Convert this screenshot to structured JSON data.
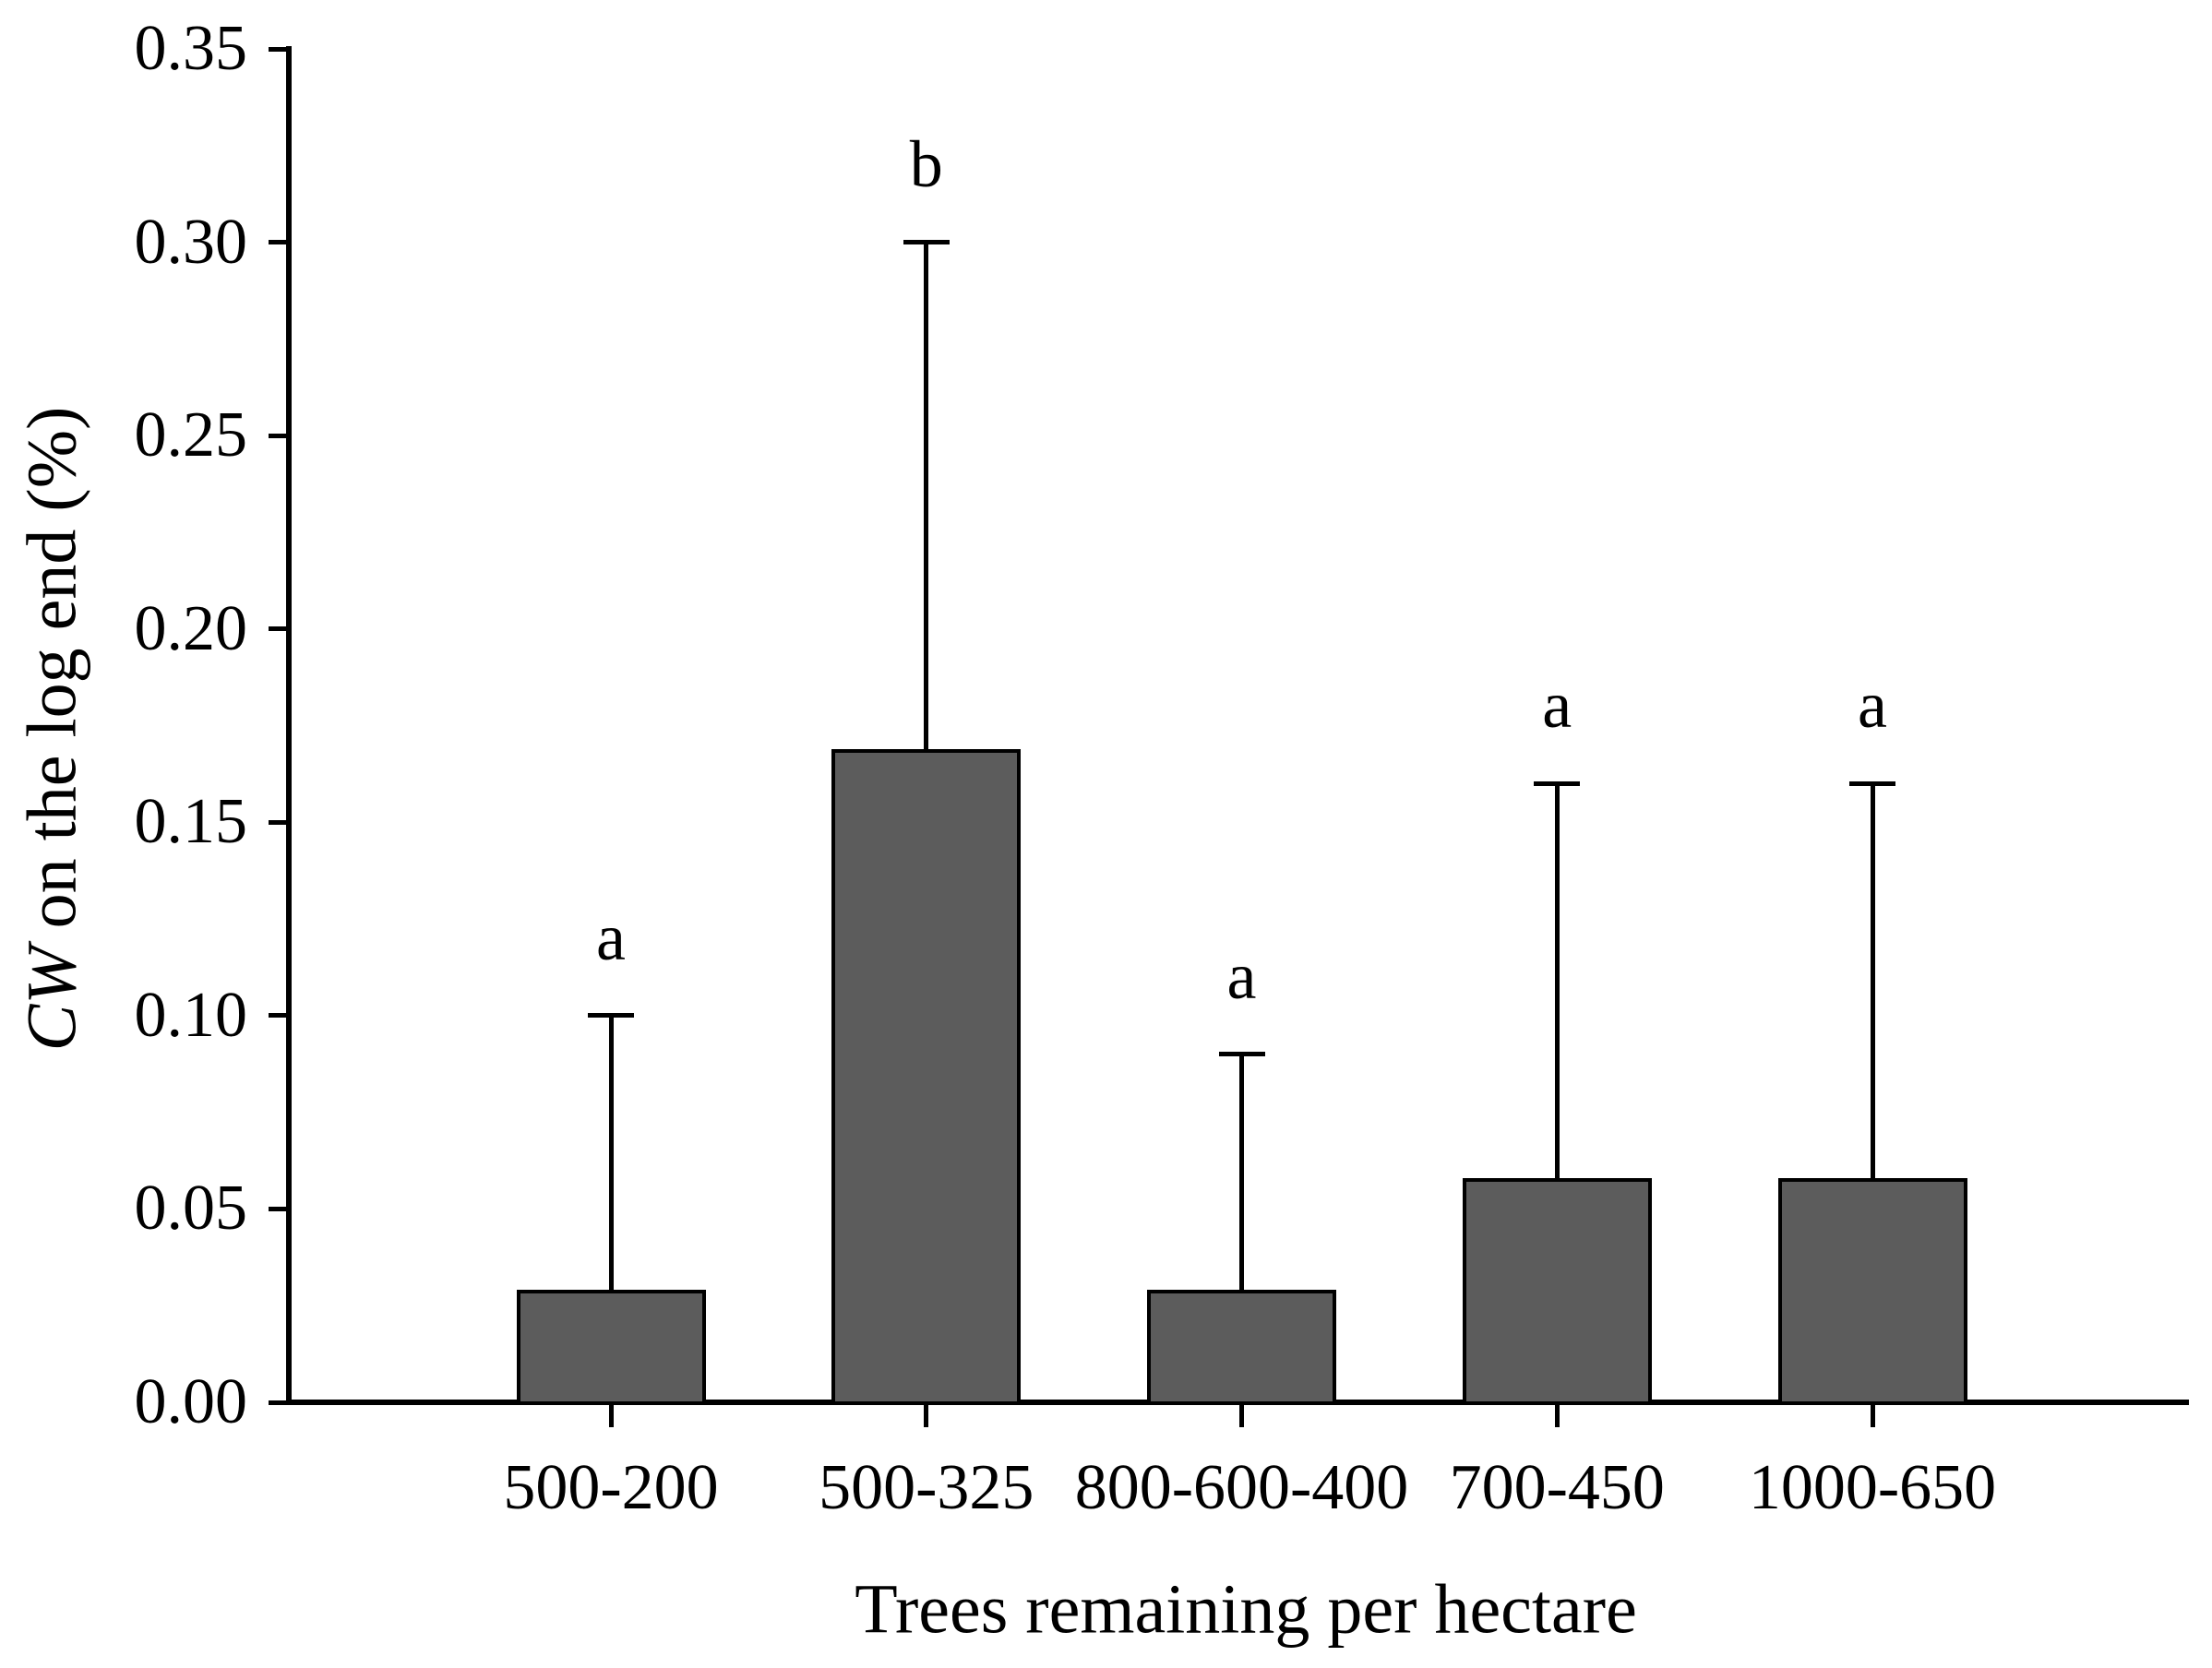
{
  "chart_data": {
    "type": "bar",
    "title": "",
    "xlabel": "Trees remaining per hectare",
    "ylabel_italic": "CW",
    "ylabel_rest": " on the log end (%)",
    "categories": [
      "500-200",
      "500-325",
      "800-600-400",
      "700-450",
      "1000-650"
    ],
    "values": [
      0.029,
      0.169,
      0.029,
      0.058,
      0.058
    ],
    "error_upper": [
      0.1,
      0.3,
      0.09,
      0.16,
      0.16
    ],
    "sig_letters": [
      "a",
      "b",
      "a",
      "a",
      "a"
    ],
    "y_tick_labels": [
      "0.00",
      "0.05",
      "0.10",
      "0.15",
      "0.20",
      "0.25",
      "0.30",
      "0.35"
    ],
    "ylim": [
      0,
      0.35
    ],
    "grid": "off",
    "legend": "none",
    "bar_fill_color": "#5c5c5c",
    "axis_color": "#000000"
  }
}
